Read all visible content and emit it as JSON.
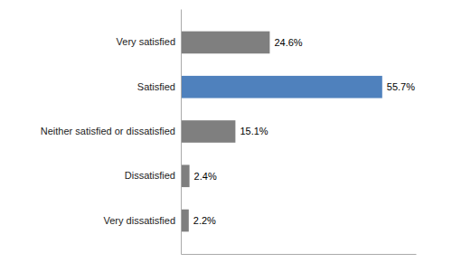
{
  "chart_data": {
    "type": "bar",
    "orientation": "horizontal",
    "categories": [
      "Very satisfied",
      "Satisfied",
      "Neither satisfied or dissatisfied",
      "Dissatisfied",
      "Very dissatisfied"
    ],
    "values": [
      24.6,
      55.7,
      15.1,
      2.4,
      2.2
    ],
    "value_labels": [
      "24.6%",
      "55.7%",
      "15.1%",
      "2.4%",
      "2.2%"
    ],
    "data_labels": true,
    "colors": [
      "#7f7f7f",
      "#4f81bd",
      "#7f7f7f",
      "#7f7f7f",
      "#7f7f7f"
    ],
    "xlim": [
      0,
      65
    ],
    "tick_labels": "y",
    "grid": false
  }
}
